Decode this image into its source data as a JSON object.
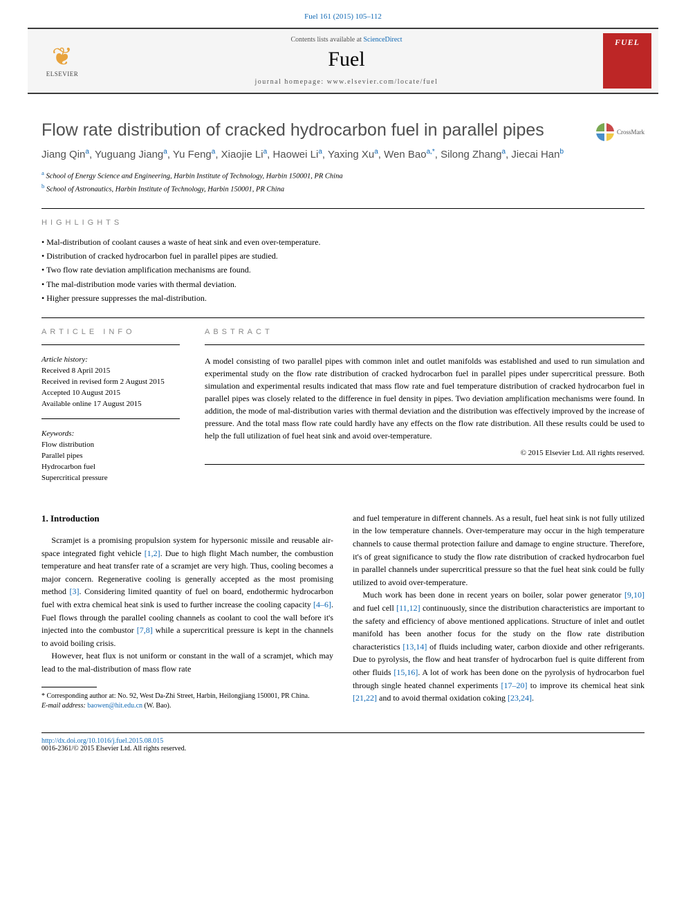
{
  "top_citation": "Fuel 161 (2015) 105–112",
  "header": {
    "publisher": "ELSEVIER",
    "contents_prefix": "Contents lists available at ",
    "contents_link": "ScienceDirect",
    "journal_name": "Fuel",
    "homepage_prefix": "journal homepage: ",
    "homepage_url": "www.elsevier.com/locate/fuel",
    "cover_label": "FUEL"
  },
  "crossmark": "CrossMark",
  "title": "Flow rate distribution of cracked hydrocarbon fuel in parallel pipes",
  "authors_html": "Jiang Qin<sup>a</sup>, Yuguang Jiang<sup>a</sup>, Yu Feng<sup>a</sup>, Xiaojie Li<sup>a</sup>, Haowei Li<sup>a</sup>, Yaxing Xu<sup>a</sup>, Wen Bao<sup>a,*</sup>, Silong Zhang<sup>a</sup>, Jiecai Han<sup>b</sup>",
  "affiliations": {
    "a": "School of Energy Science and Engineering, Harbin Institute of Technology, Harbin 150001, PR China",
    "b": "School of Astronautics, Harbin Institute of Technology, Harbin 150001, PR China"
  },
  "highlights": {
    "label": "HIGHLIGHTS",
    "items": [
      "Mal-distribution of coolant causes a waste of heat sink and even over-temperature.",
      "Distribution of cracked hydrocarbon fuel in parallel pipes are studied.",
      "Two flow rate deviation amplification mechanisms are found.",
      "The mal-distribution mode varies with thermal deviation.",
      "Higher pressure suppresses the mal-distribution."
    ]
  },
  "article_info": {
    "label": "ARTICLE INFO",
    "history_label": "Article history:",
    "history": [
      "Received 8 April 2015",
      "Received in revised form 2 August 2015",
      "Accepted 10 August 2015",
      "Available online 17 August 2015"
    ],
    "keywords_label": "Keywords:",
    "keywords": [
      "Flow distribution",
      "Parallel pipes",
      "Hydrocarbon fuel",
      "Supercritical pressure"
    ]
  },
  "abstract": {
    "label": "ABSTRACT",
    "text": "A model consisting of two parallel pipes with common inlet and outlet manifolds was established and used to run simulation and experimental study on the flow rate distribution of cracked hydrocarbon fuel in parallel pipes under supercritical pressure. Both simulation and experimental results indicated that mass flow rate and fuel temperature distribution of cracked hydrocarbon fuel in parallel pipes was closely related to the difference in fuel density in pipes. Two deviation amplification mechanisms were found. In addition, the mode of mal-distribution varies with thermal deviation and the distribution was effectively improved by the increase of pressure. And the total mass flow rate could hardly have any effects on the flow rate distribution. All these results could be used to help the full utilization of fuel heat sink and avoid over-temperature.",
    "copyright": "© 2015 Elsevier Ltd. All rights reserved."
  },
  "intro": {
    "heading": "1. Introduction",
    "p1_a": "Scramjet is a promising propulsion system for hypersonic missile and reusable air-space integrated fight vehicle ",
    "r1": "[1,2]",
    "p1_b": ". Due to high flight Mach number, the combustion temperature and heat transfer rate of a scramjet are very high. Thus, cooling becomes a major concern. Regenerative cooling is generally accepted as the most promising method ",
    "r2": "[3]",
    "p1_c": ". Considering limited quantity of fuel on board, endothermic hydrocarbon fuel with extra chemical heat sink is used to further increase the cooling capacity ",
    "r3": "[4–6]",
    "p1_d": ". Fuel flows through the parallel cooling channels as coolant to cool the wall before it's injected into the combustor ",
    "r4": "[7,8]",
    "p1_e": " while a supercritical pressure is kept in the channels to avoid boiling crisis.",
    "p2": "However, heat flux is not uniform or constant in the wall of a scramjet, which may lead to the mal-distribution of mass flow rate",
    "p3_a": "and fuel temperature in different channels. As a result, fuel heat sink is not fully utilized in the low temperature channels. Over-temperature may occur in the high temperature channels to cause thermal protection failure and damage to engine structure. Therefore, it's of great significance to study the flow rate distribution of cracked hydrocarbon fuel in parallel channels under supercritical pressure so that the fuel heat sink could be fully utilized to avoid over-temperature.",
    "p4_a": "Much work has been done in recent years on boiler, solar power generator ",
    "r5": "[9,10]",
    "p4_b": " and fuel cell ",
    "r6": "[11,12]",
    "p4_c": " continuously, since the distribution characteristics are important to the safety and efficiency of above mentioned applications. Structure of inlet and outlet manifold has been another focus for the study on the flow rate distribution characteristics ",
    "r7": "[13,14]",
    "p4_d": " of fluids including water, carbon dioxide and other refrigerants. Due to pyrolysis, the flow and heat transfer of hydrocarbon fuel is quite different from other fluids ",
    "r8": "[15,16]",
    "p4_e": ". A lot of work has been done on the pyrolysis of hydrocarbon fuel through single heated channel experiments ",
    "r9": "[17–20]",
    "p4_f": " to improve its chemical heat sink ",
    "r10": "[21,22]",
    "p4_g": " and to avoid thermal oxidation coking ",
    "r11": "[23,24]",
    "p4_h": "."
  },
  "footnote": {
    "corr_label": "* Corresponding author at: No. 92, West Da-Zhi Street, Harbin, Heilongjiang 150001, PR China.",
    "email_label": "E-mail address: ",
    "email": "baowen@hit.edu.cn",
    "email_suffix": " (W. Bao)."
  },
  "footer": {
    "doi": "http://dx.doi.org/10.1016/j.fuel.2015.08.015",
    "issn": "0016-2361/© 2015 Elsevier Ltd. All rights reserved."
  },
  "colors": {
    "link": "#1068b4",
    "rule": "#000000",
    "gray_text": "#505050",
    "cover_bg": "#bd2626"
  }
}
